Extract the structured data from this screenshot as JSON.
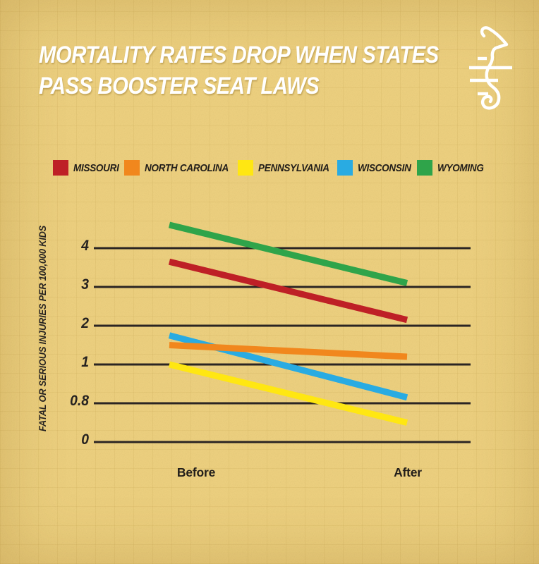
{
  "header": {
    "title_line1": "MORTALITY RATES DROP WHEN STATES",
    "title_line2": "PASS BOOSTER SEAT LAWS",
    "logo_icon": "seahorse-logo"
  },
  "legend": {
    "items": [
      {
        "label": "MISSOURI",
        "color": "#be2026"
      },
      {
        "label": "NORTH CAROLINA",
        "color": "#f1871d"
      },
      {
        "label": "PENNSYLVANIA",
        "color": "#ffe712"
      },
      {
        "label": "WISCONSIN",
        "color": "#29abe2"
      },
      {
        "label": "WYOMING",
        "color": "#2fa44a"
      }
    ]
  },
  "chart_data": {
    "type": "line",
    "variant": "slopegraph",
    "title": "MORTALITY RATES DROP WHEN STATES PASS BOOSTER SEAT LAWS",
    "categories": [
      "Before",
      "After"
    ],
    "series": [
      {
        "name": "Missouri",
        "color": "#be2026",
        "values": [
          3.65,
          2.15
        ]
      },
      {
        "name": "North Carolina",
        "color": "#f1871d",
        "values": [
          1.5,
          1.2
        ]
      },
      {
        "name": "Pennsylvania",
        "color": "#ffe712",
        "values": [
          1.0,
          0.4
        ]
      },
      {
        "name": "Wisconsin",
        "color": "#29abe2",
        "values": [
          1.75,
          0.83
        ]
      },
      {
        "name": "Wyoming",
        "color": "#2fa44a",
        "values": [
          4.6,
          3.1
        ]
      }
    ],
    "ylabel": "FATAL OR SERIOUS INJURIES PER 100,000 KIDS",
    "yticks": [
      "4",
      "3",
      "2",
      "1",
      "0.8",
      "0"
    ],
    "ytick_values": [
      4,
      3,
      2,
      1,
      0.8,
      0
    ],
    "grid": true,
    "legend_position": "top",
    "layout_note": "y-axis tick labels are evenly spaced despite non-linear values"
  },
  "colors": {
    "background": "#eed17f",
    "gridline": "#2b2523",
    "text_dark": "#221e1a",
    "title_text": "#ffffff"
  }
}
